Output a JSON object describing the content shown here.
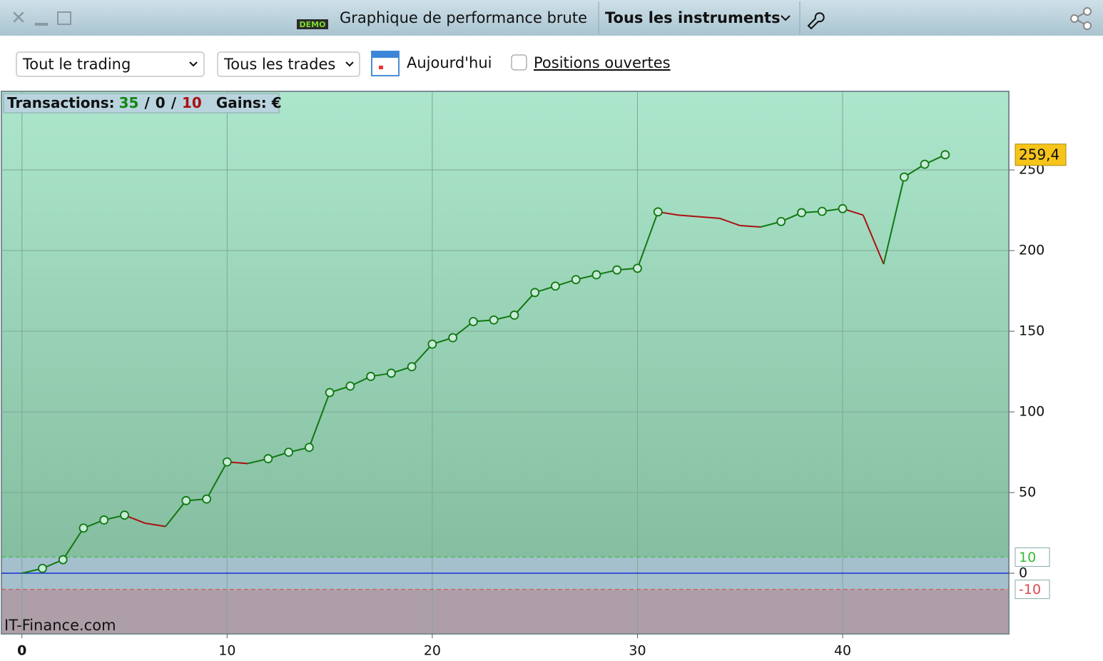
{
  "window": {
    "demo_badge": "DEMO",
    "title": "Graphique de performance brute",
    "instrument_menu": "Tous les instruments"
  },
  "toolbar": {
    "trading_select": "Tout le trading",
    "trades_select": "Tous les trades",
    "date_label": "Aujourd'hui",
    "checkbox_label": "Positions ouvertes"
  },
  "summary": {
    "transactions_label": "Transactions:",
    "wins": 35,
    "separator": "/",
    "neutral": 0,
    "losses": 10,
    "gains_label": "Gains: €"
  },
  "watermark": "IT-Finance.com",
  "chart_data": {
    "type": "line",
    "x": [
      0,
      1,
      2,
      3,
      4,
      5,
      6,
      7,
      8,
      9,
      10,
      11,
      12,
      13,
      14,
      15,
      16,
      17,
      18,
      19,
      20,
      21,
      22,
      23,
      24,
      25,
      26,
      27,
      28,
      29,
      30,
      31,
      32,
      33,
      34,
      35,
      36,
      37,
      38,
      39,
      40,
      41,
      42,
      43,
      44,
      45
    ],
    "values": [
      0,
      3,
      8.4,
      28,
      33,
      36,
      31,
      29,
      45,
      46,
      69,
      68,
      71,
      75,
      78,
      112,
      116,
      122,
      124,
      128,
      142,
      146,
      156,
      157,
      160,
      174,
      178,
      182,
      185,
      188,
      189,
      224,
      222,
      221,
      220,
      215.5,
      214.6,
      218,
      223.5,
      224.3,
      226,
      222,
      191.6,
      245.6,
      253.5,
      259.4
    ],
    "last_value_label": "259,4",
    "up_color": "#117711",
    "down_color": "#aa1111",
    "xlim": [
      -1,
      48.1
    ],
    "xticks": [
      0,
      10,
      20,
      30,
      40
    ],
    "ylim": [
      -37.6,
      298.7
    ],
    "yticks": [
      0,
      50,
      100,
      150,
      200,
      250
    ],
    "grid": true,
    "reference_lines": [
      {
        "value": 10,
        "color": "#33bb33"
      },
      {
        "value": 0,
        "color": "#1a2fd6"
      },
      {
        "value": -10,
        "color": "#d84a4a"
      }
    ]
  }
}
